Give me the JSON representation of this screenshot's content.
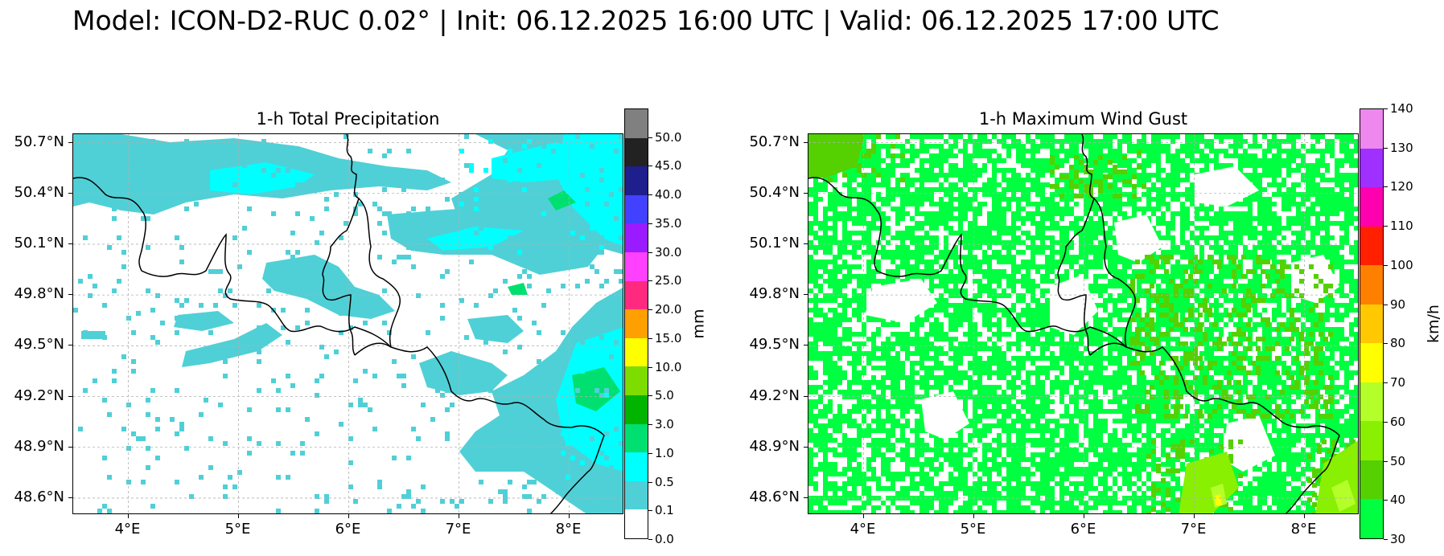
{
  "suptitle": "Model: ICON-D2-RUC 0.02° | Init: 06.12.2025 16:00 UTC | Valid: 06.12.2025 17:00 UTC",
  "lat_labels": [
    "50.7°N",
    "50.4°N",
    "50.1°N",
    "49.8°N",
    "49.5°N",
    "49.2°N",
    "48.9°N",
    "48.6°N"
  ],
  "lon_labels": [
    "4°E",
    "5°E",
    "6°E",
    "7°E",
    "8°E"
  ],
  "panels": {
    "precip": {
      "title": "1-h Total Precipitation",
      "unit": "mm",
      "ticks": [
        "0.0",
        "0.1",
        "0.5",
        "1.0",
        "3.0",
        "5.0",
        "10.0",
        "15.0",
        "20.0",
        "25.0",
        "30.0",
        "35.0",
        "40.0",
        "45.0",
        "50.0"
      ],
      "colors": [
        "#ffffff",
        "#4fd0d6",
        "#00ffff",
        "#00e070",
        "#00b400",
        "#7ddc00",
        "#ffff00",
        "#ffa000",
        "#ff2a80",
        "#ff40ff",
        "#9a1bff",
        "#4141ff",
        "#1e1e8c",
        "#222222",
        "#808080"
      ]
    },
    "gust": {
      "title": "1-h Maximum Wind Gust",
      "unit": "km/h",
      "ticks": [
        "30",
        "40",
        "50",
        "60",
        "70",
        "80",
        "90",
        "100",
        "110",
        "120",
        "130",
        "140"
      ],
      "colors": [
        "#00ff40",
        "#55d000",
        "#88f000",
        "#b4ff2a",
        "#ffff00",
        "#ffc800",
        "#ff8000",
        "#ff2000",
        "#ff00b0",
        "#a030ff",
        "#ee88ee"
      ]
    }
  },
  "chart_data": {
    "type": "heatmap",
    "extent": {
      "lon": [
        3.5,
        8.5
      ],
      "lat": [
        48.5,
        50.75
      ]
    },
    "grid": true,
    "legend": "colorbar-right"
  }
}
